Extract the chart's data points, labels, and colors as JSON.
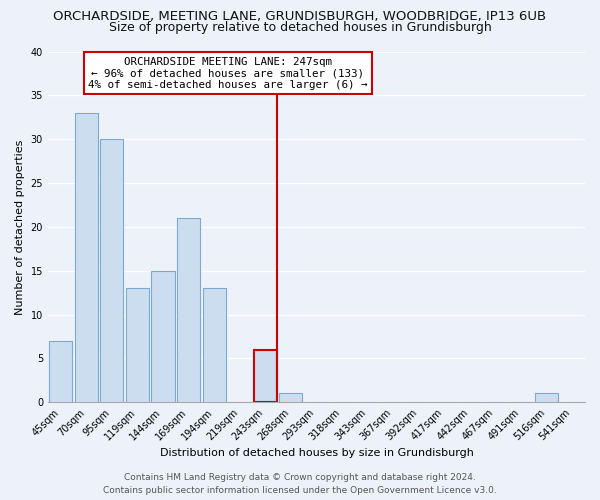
{
  "title_line1": "ORCHARDSIDE, MEETING LANE, GRUNDISBURGH, WOODBRIDGE, IP13 6UB",
  "title_line2": "Size of property relative to detached houses in Grundisburgh",
  "xlabel": "Distribution of detached houses by size in Grundisburgh",
  "ylabel": "Number of detached properties",
  "bar_labels": [
    "45sqm",
    "70sqm",
    "95sqm",
    "119sqm",
    "144sqm",
    "169sqm",
    "194sqm",
    "219sqm",
    "243sqm",
    "268sqm",
    "293sqm",
    "318sqm",
    "343sqm",
    "367sqm",
    "392sqm",
    "417sqm",
    "442sqm",
    "467sqm",
    "491sqm",
    "516sqm",
    "541sqm"
  ],
  "bar_values": [
    7,
    33,
    30,
    13,
    15,
    21,
    13,
    0,
    6,
    1,
    0,
    0,
    0,
    0,
    0,
    0,
    0,
    0,
    0,
    1,
    0
  ],
  "bar_color": "#ccddf0",
  "bar_edge_color": "#7aaad0",
  "highlight_index": 8,
  "highlight_line_color": "#cc0000",
  "ylim": [
    0,
    40
  ],
  "yticks": [
    0,
    5,
    10,
    15,
    20,
    25,
    30,
    35,
    40
  ],
  "annotation_title": "ORCHARDSIDE MEETING LANE: 247sqm",
  "annotation_line1": "← 96% of detached houses are smaller (133)",
  "annotation_line2": "4% of semi-detached houses are larger (6) →",
  "annotation_box_color": "#ffffff",
  "annotation_border_color": "#cc0000",
  "footer_line1": "Contains HM Land Registry data © Crown copyright and database right 2024.",
  "footer_line2": "Contains public sector information licensed under the Open Government Licence v3.0.",
  "background_color": "#edf2fa",
  "grid_color": "#ffffff",
  "title1_fontsize": 9.5,
  "title2_fontsize": 9.0,
  "axis_label_fontsize": 8.0,
  "tick_fontsize": 7.0,
  "annotation_fontsize": 7.8,
  "footer_fontsize": 6.5
}
